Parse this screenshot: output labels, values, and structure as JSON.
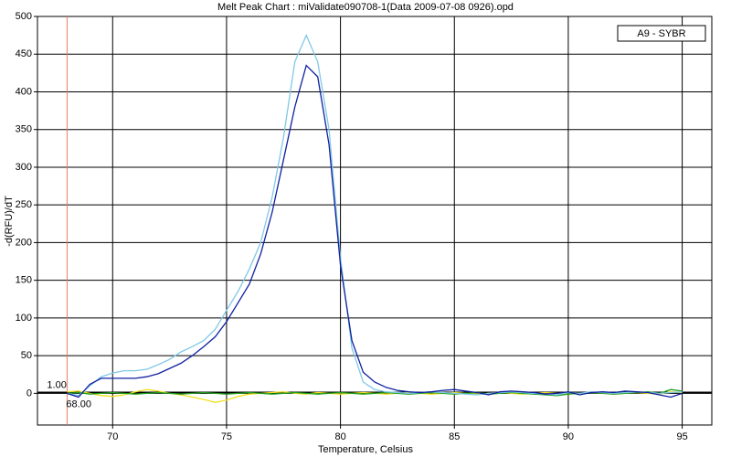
{
  "chart_data": {
    "type": "line",
    "title": "Melt Peak Chart : miValidate090708-1(Data 2009-07-08 0926).opd",
    "x_label": "Temperature, Celsius",
    "y_label": "-d(RFU)/dT",
    "legend": "A9 - SYBR",
    "threshold": {
      "value": 1,
      "label": "1.00"
    },
    "marker_x": {
      "value": 68,
      "label": "68.00"
    },
    "xlim": [
      66.7,
      96.3
    ],
    "ylim": [
      -42,
      500
    ],
    "xticks": [
      70,
      75,
      80,
      85,
      90,
      95
    ],
    "yticks": [
      0,
      50,
      100,
      150,
      200,
      250,
      300,
      350,
      400,
      450,
      500
    ],
    "grid": true,
    "x": [
      68,
      68.5,
      69,
      69.5,
      70,
      70.5,
      71,
      71.5,
      72,
      72.5,
      73,
      73.5,
      74,
      74.5,
      75,
      75.5,
      76,
      76.5,
      77,
      77.5,
      78,
      78.5,
      79,
      79.5,
      80,
      80.5,
      81,
      81.5,
      82,
      82.5,
      83,
      83.5,
      84,
      84.5,
      85,
      85.5,
      86,
      86.5,
      87,
      87.5,
      88,
      88.5,
      89,
      89.5,
      90,
      90.5,
      91,
      91.5,
      92,
      92.5,
      93,
      93.5,
      94,
      94.5,
      95
    ],
    "series": [
      {
        "color": "#f0e020",
        "values": [
          2,
          3,
          0,
          -3,
          -4,
          -2,
          2,
          5,
          3,
          0,
          -2,
          -5,
          -8,
          -12,
          -9,
          -4,
          -1,
          0,
          1,
          2,
          0,
          -1,
          1,
          0,
          -1,
          0,
          1,
          0,
          -1,
          0,
          1,
          0,
          -1,
          0,
          1,
          0,
          -1,
          0,
          1,
          0,
          -1,
          0,
          1,
          0,
          -1,
          0,
          1,
          0,
          -1,
          0,
          1,
          0,
          -1,
          2,
          1
        ]
      },
      {
        "color": "#20a020",
        "values": [
          0,
          1,
          -1,
          0,
          1,
          0,
          -1,
          0,
          1,
          0,
          -1,
          0,
          1,
          0,
          -1,
          0,
          1,
          0,
          -1,
          0,
          1,
          0,
          -1,
          0,
          1,
          0,
          -1,
          0,
          1,
          0,
          -1,
          0,
          1,
          0,
          -1,
          0,
          1,
          -1,
          0,
          1,
          0,
          -1,
          -2,
          -3,
          -1,
          0,
          1,
          0,
          -1,
          0,
          1,
          2,
          0,
          5,
          3
        ]
      },
      {
        "color": "#80c8e8",
        "values": [
          0,
          -3,
          10,
          22,
          27,
          30,
          30,
          32,
          38,
          45,
          55,
          62,
          70,
          85,
          110,
          135,
          165,
          200,
          260,
          340,
          440,
          475,
          440,
          350,
          180,
          60,
          15,
          5,
          2,
          1,
          0,
          1,
          2,
          1,
          0,
          -1,
          -2,
          0,
          1,
          2,
          1,
          0,
          -1,
          -2,
          1,
          0,
          2,
          1,
          0,
          1,
          2,
          1,
          0,
          1,
          2
        ]
      },
      {
        "color": "#1020a0",
        "values": [
          0,
          -5,
          12,
          20,
          20,
          20,
          20,
          22,
          26,
          33,
          40,
          50,
          62,
          75,
          95,
          120,
          145,
          185,
          240,
          310,
          380,
          435,
          420,
          330,
          170,
          70,
          28,
          15,
          8,
          4,
          2,
          1,
          2,
          4,
          5,
          3,
          1,
          -2,
          2,
          3,
          2,
          1,
          -1,
          0,
          2,
          -2,
          1,
          2,
          1,
          3,
          2,
          1,
          -2,
          -5,
          0
        ]
      }
    ]
  }
}
